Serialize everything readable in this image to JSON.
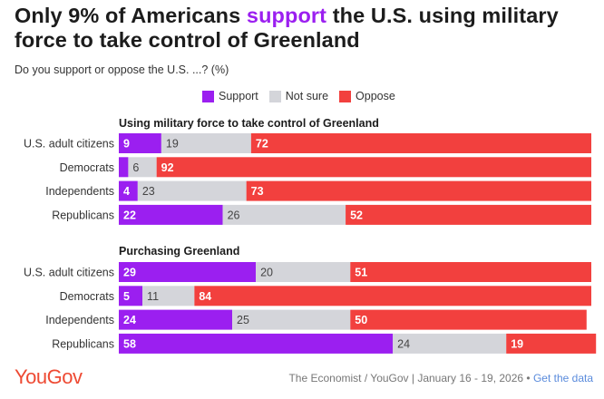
{
  "title": {
    "before": "Only 9% of Americans ",
    "highlight": "support",
    "after": " the U.S. using military force to take control of Greenland"
  },
  "subtitle": "Do you support or oppose the U.S. ...? (%)",
  "colors": {
    "support": "#9b1ff0",
    "not_sure": "#d4d5da",
    "oppose": "#f2403e",
    "highlight": "#9b1ff0",
    "logo": "#ee4a33",
    "link": "#5a8bdc"
  },
  "legend": {
    "support": "Support",
    "not_sure": "Not sure",
    "oppose": "Oppose"
  },
  "chart_data": {
    "type": "bar",
    "orientation": "horizontal-stacked",
    "series_names": [
      "Support",
      "Not sure",
      "Oppose"
    ],
    "groups": [
      {
        "title": "Using military force to take control of Greenland",
        "categories": [
          "U.S. adult citizens",
          "Democrats",
          "Independents",
          "Republicans"
        ],
        "series": [
          {
            "name": "Support",
            "values": [
              9,
              2,
              4,
              22
            ]
          },
          {
            "name": "Not sure",
            "values": [
              19,
              6,
              23,
              26
            ]
          },
          {
            "name": "Oppose",
            "values": [
              72,
              92,
              73,
              52
            ]
          }
        ],
        "labels": [
          [
            "9",
            "19",
            "72"
          ],
          [
            "",
            "6",
            "92"
          ],
          [
            "4",
            "23",
            "73"
          ],
          [
            "22",
            "26",
            "52"
          ]
        ]
      },
      {
        "title": "Purchasing Greenland",
        "categories": [
          "U.S. adult citizens",
          "Democrats",
          "Independents",
          "Republicans"
        ],
        "series": [
          {
            "name": "Support",
            "values": [
              29,
              5,
              24,
              58
            ]
          },
          {
            "name": "Not sure",
            "values": [
              20,
              11,
              25,
              24
            ]
          },
          {
            "name": "Oppose",
            "values": [
              51,
              84,
              50,
              19
            ]
          }
        ],
        "labels": [
          [
            "29",
            "20",
            "51"
          ],
          [
            "5",
            "11",
            "84"
          ],
          [
            "24",
            "25",
            "50"
          ],
          [
            "58",
            "24",
            "19"
          ]
        ]
      }
    ],
    "xlim": [
      0,
      100
    ]
  },
  "footer": {
    "logo": "YouGov",
    "source": "The Economist / YouGov | January 16 - 19, 2026 • ",
    "link": "Get the data"
  }
}
